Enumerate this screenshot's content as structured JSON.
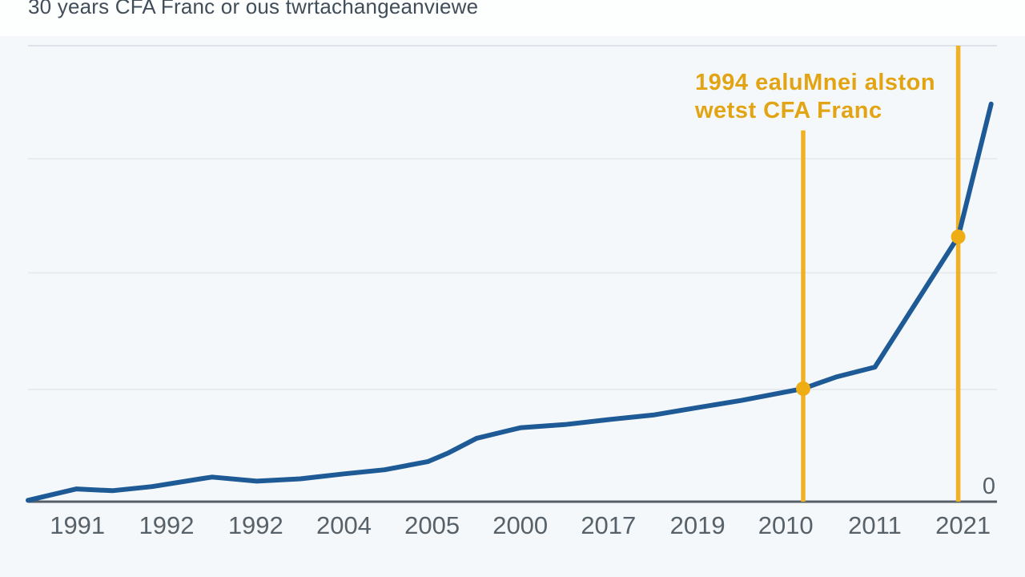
{
  "chart_data": {
    "type": "line",
    "title": "30 years CFA Franc or ous twrtachangeanviewe",
    "x_ticks": [
      {
        "label": "1991",
        "x": 0.051
      },
      {
        "label": "1992",
        "x": 0.143
      },
      {
        "label": "1992",
        "x": 0.235
      },
      {
        "label": "2004",
        "x": 0.326
      },
      {
        "label": "2005",
        "x": 0.417
      },
      {
        "label": "2000",
        "x": 0.508
      },
      {
        "label": "2017",
        "x": 0.599
      },
      {
        "label": "2019",
        "x": 0.691
      },
      {
        "label": "2010",
        "x": 0.782
      },
      {
        "label": "2011",
        "x": 0.874
      },
      {
        "label": "2021",
        "x": 0.965
      }
    ],
    "y_axis_right_label": "0",
    "ylim": [
      0,
      100
    ],
    "grid_values": [
      24.6,
      50.2,
      75.2
    ],
    "grid_on": true,
    "legend": "none",
    "series": [
      {
        "name": "cfa-franc-exchange-rate",
        "points": [
          [
            0.0,
            0.3
          ],
          [
            0.05,
            2.8
          ],
          [
            0.087,
            2.4
          ],
          [
            0.128,
            3.3
          ],
          [
            0.178,
            5.0
          ],
          [
            0.19,
            5.4
          ],
          [
            0.236,
            4.5
          ],
          [
            0.281,
            5.0
          ],
          [
            0.326,
            6.1
          ],
          [
            0.368,
            7.0
          ],
          [
            0.413,
            8.8
          ],
          [
            0.434,
            10.7
          ],
          [
            0.463,
            13.9
          ],
          [
            0.508,
            16.2
          ],
          [
            0.554,
            16.9
          ],
          [
            0.599,
            18.0
          ],
          [
            0.645,
            19.0
          ],
          [
            0.69,
            20.6
          ],
          [
            0.736,
            22.2
          ],
          [
            0.8,
            24.8
          ],
          [
            0.835,
            27.4
          ],
          [
            0.874,
            29.5
          ],
          [
            0.96,
            58.1
          ],
          [
            0.994,
            87.2
          ]
        ]
      }
    ],
    "annotations": {
      "text_lines": [
        "1994 ealuMnei alston",
        "wetst CFA Franc"
      ],
      "vlines": [
        {
          "x": 0.8,
          "v_top": 81.4
        },
        {
          "x": 0.96,
          "v_top": 100
        }
      ],
      "markers": [
        {
          "x": 0.8,
          "v": 24.8
        },
        {
          "x": 0.96,
          "v": 58.1
        }
      ]
    },
    "colors": {
      "line": "#1e5a96",
      "accent": "#f0b126",
      "marker": "#eead15",
      "annotation_text": "#e2a412",
      "grid": "#e7ebef",
      "border": "#dde3e8",
      "axis": "#565f68",
      "tick_text": "#576169",
      "title_text": "#414e5a",
      "plot_background": "#f5f8fa"
    }
  }
}
